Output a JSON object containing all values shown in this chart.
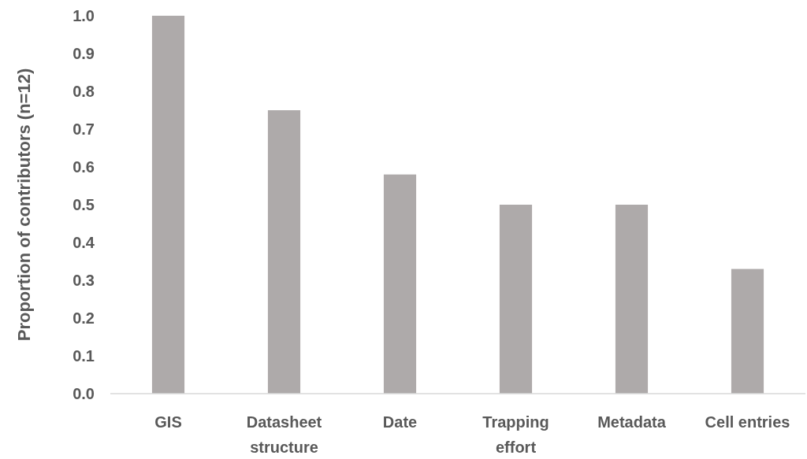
{
  "chart_data": {
    "type": "bar",
    "ylabel": "Proportion of contributors (n=12)",
    "categories": [
      "GIS",
      "Datasheet structure",
      "Date",
      "Trapping effort",
      "Metadata",
      "Cell entries"
    ],
    "values": [
      1.0,
      0.75,
      0.58,
      0.5,
      0.5,
      0.33
    ],
    "color": "#aeaaaa",
    "ylim": [
      0,
      1.0
    ],
    "yticks": [
      {
        "value": 0,
        "label": "0.0"
      },
      {
        "value": 0.1,
        "label": "0.1"
      },
      {
        "value": 0.2,
        "label": "0.2"
      },
      {
        "value": 0.3,
        "label": "0.3"
      },
      {
        "value": 0.4,
        "label": "0.4"
      },
      {
        "value": 0.5,
        "label": "0.5"
      },
      {
        "value": 0.6,
        "label": "0.6"
      },
      {
        "value": 0.7,
        "label": "0.7"
      },
      {
        "value": 0.8,
        "label": "0.8"
      },
      {
        "value": 0.9,
        "label": "0.9"
      },
      {
        "value": 1.0,
        "label": "1.0"
      }
    ],
    "grid": false
  }
}
